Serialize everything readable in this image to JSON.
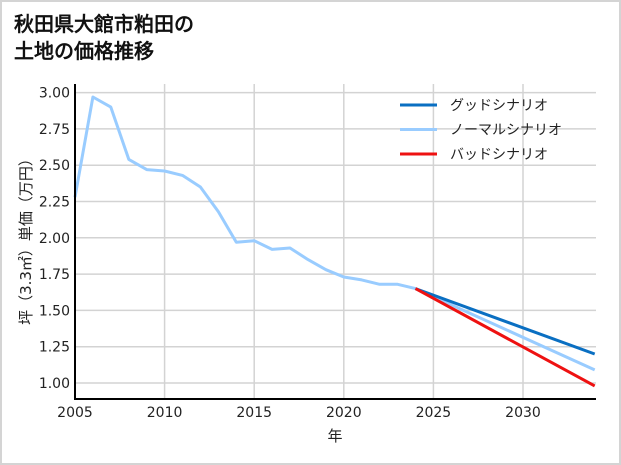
{
  "title": {
    "line1": "秋田県大館市粕田の",
    "line2": "土地の価格推移"
  },
  "colors": {
    "good": "#0a6fc2",
    "normal": "#99ccff",
    "bad": "#ee1111",
    "grid": "#d3d3d3",
    "axis": "#000000"
  },
  "chart_data": {
    "type": "line",
    "title": "秋田県大館市粕田の土地の価格推移",
    "xlabel": "年",
    "ylabel": "坪（3.3㎡）単価（万円）",
    "xlim": [
      2005,
      2034
    ],
    "ylim": [
      0.89,
      3.05
    ],
    "xticks": [
      2005,
      2010,
      2015,
      2020,
      2025,
      2030
    ],
    "yticks": [
      1.0,
      1.25,
      1.5,
      1.75,
      2.0,
      2.25,
      2.5,
      2.75,
      3.0
    ],
    "ytick_labels": [
      "1.00",
      "1.25",
      "1.50",
      "1.75",
      "2.00",
      "2.25",
      "2.50",
      "2.75",
      "3.00"
    ],
    "grid": true,
    "legend_position": "upper right",
    "series": [
      {
        "name": "グッドシナリオ",
        "color": "#0a6fc2",
        "x": [
          2024,
          2034
        ],
        "values": [
          1.65,
          1.2
        ]
      },
      {
        "name": "ノーマルシナリオ",
        "color": "#99ccff",
        "x": [
          2005,
          2006,
          2007,
          2008,
          2009,
          2010,
          2011,
          2012,
          2013,
          2014,
          2015,
          2016,
          2017,
          2018,
          2019,
          2020,
          2021,
          2022,
          2023,
          2024,
          2034
        ],
        "values": [
          2.28,
          2.97,
          2.9,
          2.54,
          2.47,
          2.46,
          2.43,
          2.35,
          2.18,
          1.97,
          1.98,
          1.92,
          1.93,
          1.85,
          1.78,
          1.73,
          1.71,
          1.68,
          1.68,
          1.65,
          1.09
        ]
      },
      {
        "name": "バッドシナリオ",
        "color": "#ee1111",
        "x": [
          2024,
          2034
        ],
        "values": [
          1.65,
          0.98
        ]
      }
    ]
  }
}
